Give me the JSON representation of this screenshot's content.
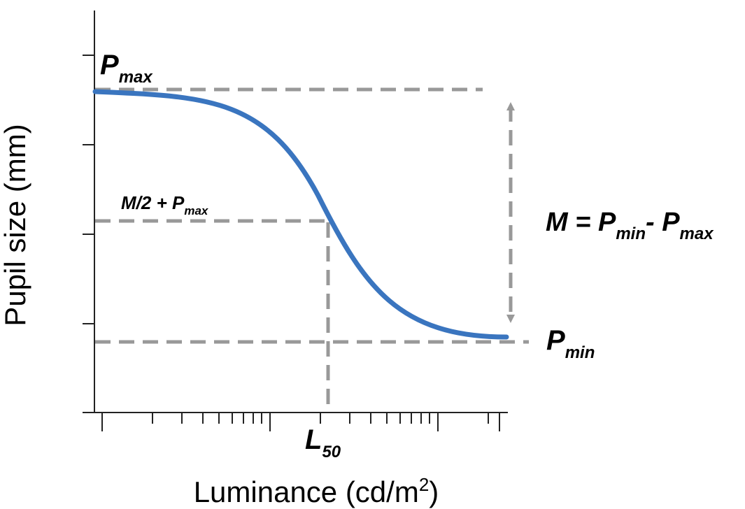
{
  "axes": {
    "y_title": "Pupil size (mm)",
    "x_title_main": "Luminance (cd/m",
    "x_title_sup": "2",
    "x_title_close": ")"
  },
  "labels": {
    "pmax": {
      "main": "P",
      "sub": "max"
    },
    "half": {
      "main": "M/2 + P",
      "sub": "max"
    },
    "pmin": {
      "main": "P",
      "sub": "min"
    },
    "l50": {
      "main": "L",
      "sub": "50"
    },
    "m_eq": {
      "m": "M = P",
      "sub1": "min",
      "minus": "- P",
      "sub2": "max"
    }
  },
  "colors": {
    "curve": "#3a75bf",
    "guide": "#999999",
    "axis": "#222222"
  }
}
